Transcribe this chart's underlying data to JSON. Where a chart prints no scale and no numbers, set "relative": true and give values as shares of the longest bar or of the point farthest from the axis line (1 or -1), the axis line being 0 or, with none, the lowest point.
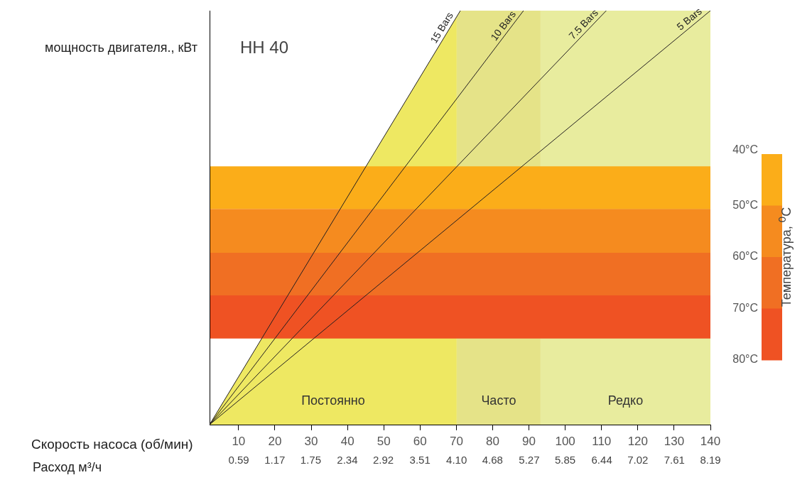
{
  "chart_data": {
    "type": "line",
    "title": "HH 40",
    "ylabel": "мощность двигателя., кВт",
    "xlabel": "Скорость насоса (об/мин)",
    "x2label": "Расход м³/ч",
    "clabel": "Температура, $^{0}$C",
    "relative": true,
    "marker": "none",
    "legend": false,
    "grid": false,
    "xlim": [
      2,
      140
    ],
    "xticks": [
      10,
      20,
      30,
      40,
      50,
      60,
      70,
      80,
      90,
      100,
      110,
      120,
      130,
      140
    ],
    "x2lim": [
      0.12,
      8.19
    ],
    "x2ticks": [
      0.59,
      1.17,
      1.75,
      2.34,
      2.92,
      3.51,
      {
        "value": 4.1,
        "label": "4.10"
      },
      4.68,
      5.27,
      5.85,
      6.44,
      7.02,
      7.61,
      8.19
    ],
    "clim": [
      40,
      80
    ],
    "cticks": [
      {
        "value": 40,
        "label": "40°C"
      },
      {
        "value": 50,
        "label": "50°C"
      },
      {
        "value": 60,
        "label": "60°C"
      },
      {
        "value": 70,
        "label": "70°C"
      },
      {
        "value": 80,
        "label": "80°C"
      }
    ],
    "series": [
      {
        "name": "15 Bars",
        "color": "#231f20",
        "x": [
          2,
          71.1
        ],
        "values": [
          0,
          1
        ]
      },
      {
        "name": "10 Bars",
        "color": "#231f20",
        "x": [
          2,
          88.5
        ],
        "values": [
          0,
          1
        ]
      },
      {
        "name": "7.5 Bars",
        "color": "#231f20",
        "x": [
          2,
          111.3
        ],
        "values": [
          0,
          1
        ]
      },
      {
        "name": "5 Bars",
        "color": "#231f20",
        "x": [
          2,
          140
        ],
        "values": [
          0,
          1
        ]
      }
    ],
    "bands": [
      {
        "axis": "x",
        "from": 2,
        "to": 70.1,
        "label": "Постоянно",
        "color": "#eee862"
      },
      {
        "axis": "x",
        "from": 70.1,
        "to": 93.2,
        "label": "Часто",
        "color": "#e5e388"
      },
      {
        "axis": "x",
        "from": 93.2,
        "to": 140,
        "label": "Редко",
        "color": "#e8ec9e"
      },
      {
        "axis": "y",
        "from": 0.521,
        "to": 0.624,
        "color": "#fbad19"
      },
      {
        "axis": "y",
        "from": 0.415,
        "to": 0.521,
        "color": "#f58b1f"
      },
      {
        "axis": "y",
        "from": 0.312,
        "to": 0.415,
        "color": "#f06f23"
      },
      {
        "axis": "y",
        "from": 0.208,
        "to": 0.312,
        "color": "#ef5223"
      }
    ]
  }
}
